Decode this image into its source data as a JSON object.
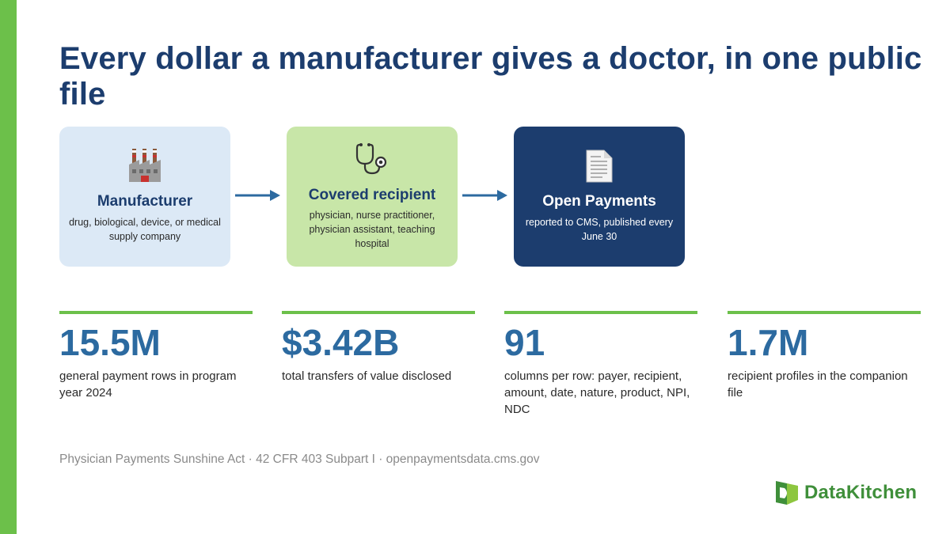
{
  "title": "Every dollar a manufacturer gives a doctor, in one public file",
  "flow": [
    {
      "icon": "factory-icon",
      "title": "Manufacturer",
      "subtitle": "drug, biological, device, or medical supply company",
      "bg_color": "#dce9f6"
    },
    {
      "icon": "stethoscope-icon",
      "title": "Covered recipient",
      "subtitle": "physician, nurse practitioner, physician assistant, teaching hospital",
      "bg_color": "#c8e6a8"
    },
    {
      "icon": "document-icon",
      "title": "Open Payments",
      "subtitle": "reported to CMS, published every June 30",
      "bg_color": "#1c3d6e"
    }
  ],
  "stats": [
    {
      "value": "15.5M",
      "description": "general payment rows in program year 2024"
    },
    {
      "value": "$3.42B",
      "description": "total transfers of value disclosed"
    },
    {
      "value": "91",
      "description": "columns per row: payer, recipient, amount, date, nature, product, NPI, NDC"
    },
    {
      "value": "1.7M",
      "description": "recipient profiles in the companion file"
    }
  ],
  "footer": {
    "source": "Physician Payments Sunshine Act · 42 CFR 403 Subpart I · openpaymentsdata.cms.gov"
  },
  "logo": {
    "text": "DataKitchen",
    "icon": "datakitchen-logo-icon"
  },
  "colors": {
    "accent_green": "#6cc04a",
    "navy": "#1c3d6e",
    "stat_blue": "#2c6aa0",
    "arrow_blue": "#2c6aa0",
    "footer_gray": "#8a8a8a"
  }
}
